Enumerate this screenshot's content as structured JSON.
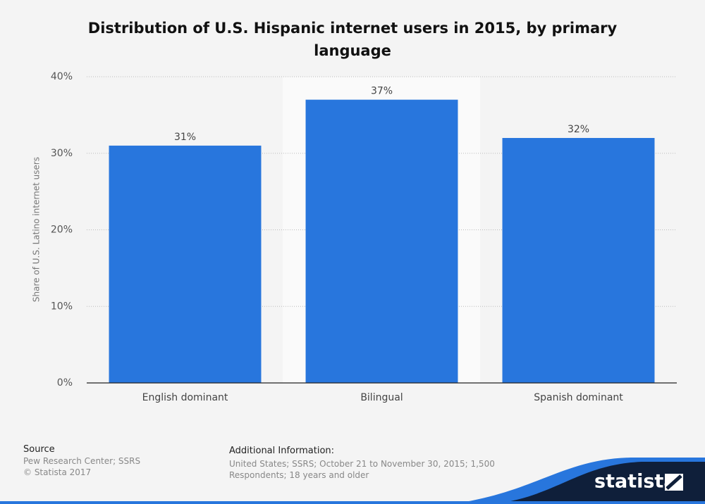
{
  "chart_data": {
    "type": "bar",
    "title": "Distribution of U.S. Hispanic internet users in 2015, by primary language",
    "y_label": "Share of U.S. Latino internet users",
    "categories": [
      "English dominant",
      "Bilingual",
      "Spanish dominant"
    ],
    "values": [
      31,
      37,
      32
    ],
    "value_labels": [
      "31%",
      "37%",
      "32%"
    ],
    "color": "#2876dd",
    "ylim": [
      0,
      40
    ],
    "yticks": [
      {
        "value": 0,
        "label": "0%"
      },
      {
        "value": 10,
        "label": "10%"
      },
      {
        "value": 20,
        "label": "20%"
      },
      {
        "value": 30,
        "label": "30%"
      },
      {
        "value": 40,
        "label": "40%"
      }
    ],
    "grid": true
  },
  "footer": {
    "source_heading": "Source",
    "source": "Pew Research Center; SSRS",
    "copyright": "© Statista 2017",
    "info_heading": "Additional Information:",
    "info": "United States; SSRS; October 21 to November 30, 2015; 1,500 Respondents; 18 years and older",
    "brand": "statista"
  }
}
